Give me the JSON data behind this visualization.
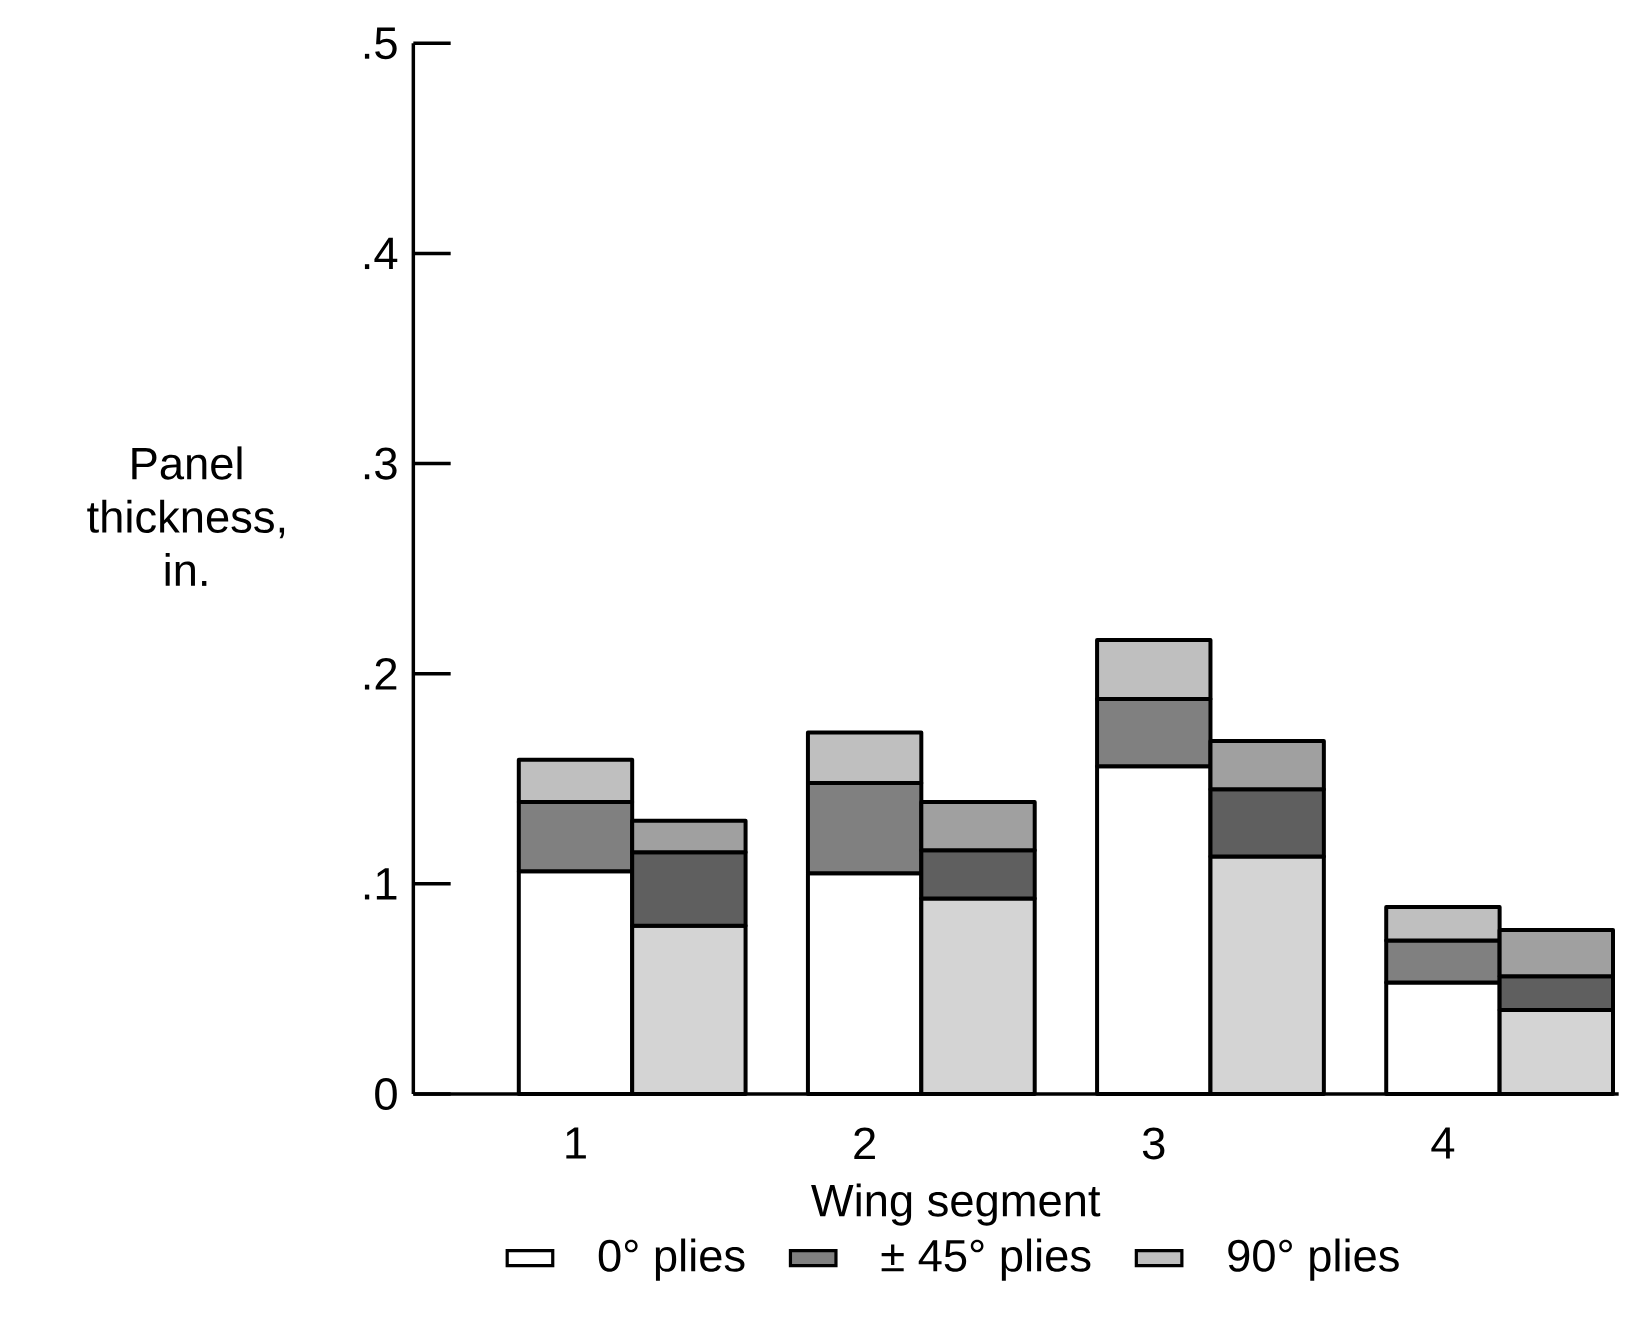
{
  "chart_data": {
    "type": "bar",
    "stacked": true,
    "xlabel": "Wing segment",
    "ylabel": "Panel thickness, in.",
    "categories": [
      "1",
      null,
      "2",
      null,
      "3",
      null,
      "4",
      null
    ],
    "series": [
      {
        "name": "0° plies",
        "color": "#ffffff",
        "colors": [
          "#ffffff",
          "#d4d4d4",
          "#ffffff",
          "#d4d4d4",
          "#ffffff",
          "#d4d4d4",
          "#ffffff",
          "#d4d4d4"
        ],
        "values": [
          0.106,
          0.08,
          0.105,
          0.093,
          0.156,
          0.113,
          0.053,
          0.04
        ]
      },
      {
        "name": "± 45° plies",
        "color": "#808080",
        "colors": [
          "#808080",
          "#5f5f5f",
          "#808080",
          "#5f5f5f",
          "#808080",
          "#5f5f5f",
          "#808080",
          "#5f5f5f"
        ],
        "values": [
          0.033,
          0.035,
          0.043,
          0.023,
          0.032,
          0.032,
          0.02,
          0.016
        ]
      },
      {
        "name": "90° plies",
        "color": "#bfbfbf",
        "colors": [
          "#bfbfbf",
          "#a0a0a0",
          "#bfbfbf",
          "#a0a0a0",
          "#bfbfbf",
          "#a0a0a0",
          "#bfbfbf",
          "#a0a0a0"
        ],
        "values": [
          0.02,
          0.015,
          0.024,
          0.023,
          0.028,
          0.023,
          0.016,
          0.022
        ]
      }
    ],
    "ylim": [
      0,
      0.5
    ],
    "yticks": [
      0,
      {
        "value": 0.1,
        "label": ".1"
      },
      {
        "value": 0.2,
        "label": ".2"
      },
      {
        "value": 0.3,
        "label": ".3"
      },
      {
        "value": 0.4,
        "label": ".4"
      },
      {
        "value": 0.5,
        "label": ".5"
      }
    ],
    "legend": "bottom"
  }
}
